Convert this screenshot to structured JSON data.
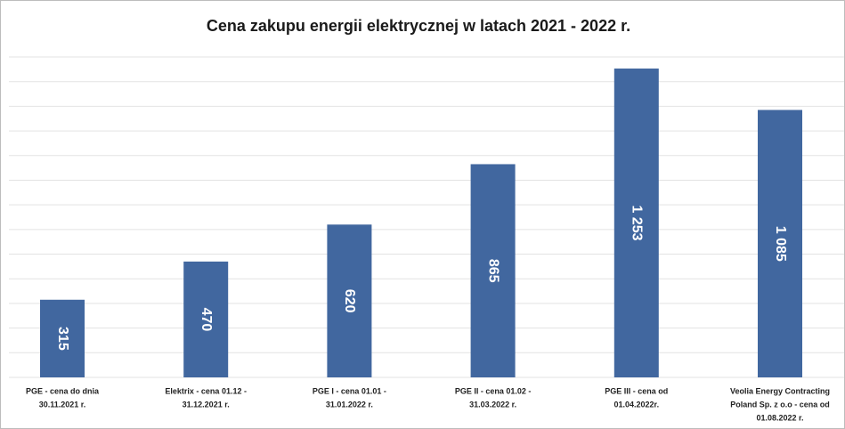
{
  "chart_data": {
    "type": "bar",
    "title": "Cena zakupu energii elektrycznej w latach 2021 - 2022 r.",
    "categories": [
      [
        "PGE - cena do dnia",
        "30.11.2021 r."
      ],
      [
        "Elektrix - cena 01.12 -",
        "31.12.2021 r."
      ],
      [
        "PGE I - cena 01.01 -",
        "31.01.2022 r."
      ],
      [
        "PGE II - cena 01.02 -",
        "31.03.2022 r."
      ],
      [
        "PGE III - cena od",
        "01.04.2022r."
      ],
      [
        "Veolia Energy Contracting",
        "Poland Sp. z o.o  - cena od",
        "01.08.2022 r."
      ]
    ],
    "values": [
      315,
      470,
      620,
      865,
      1253,
      1085
    ],
    "value_labels": [
      "315",
      "470",
      "620",
      "865",
      "1 253",
      "1 085"
    ],
    "color": "#41679f",
    "ylim": [
      0,
      1300
    ],
    "yticks": [
      0,
      100,
      200,
      300,
      400,
      500,
      600,
      700,
      800,
      900,
      1000,
      1100,
      1200,
      1300
    ],
    "grid": true
  }
}
